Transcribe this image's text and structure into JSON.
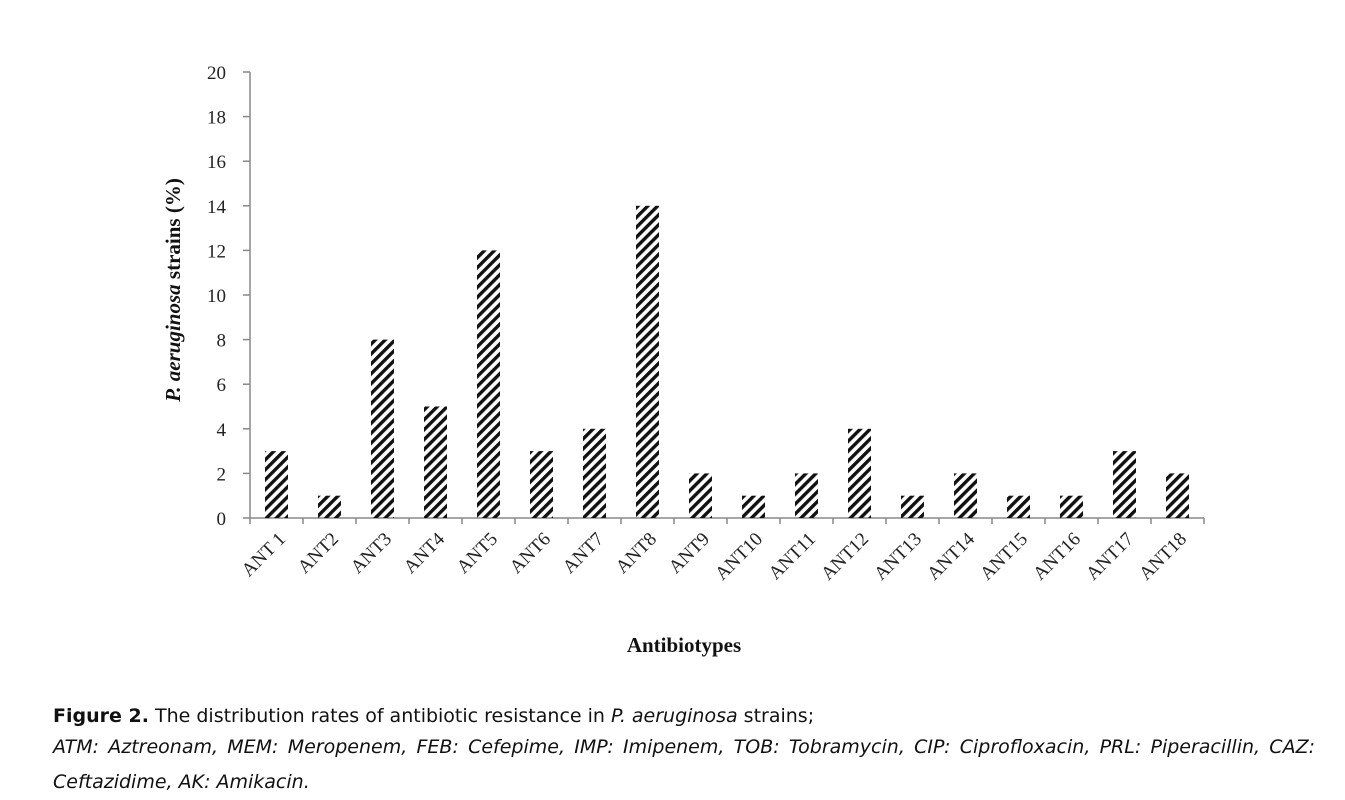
{
  "chart_data": {
    "type": "bar",
    "categories": [
      "ANT 1",
      "ANT2",
      "ANT3",
      "ANT4",
      "ANT5",
      "ANT6",
      "ANT7",
      "ANT8",
      "ANT9",
      "ANT10",
      "ANT11",
      "ANT12",
      "ANT13",
      "ANT14",
      "ANT15",
      "ANT16",
      "ANT17",
      "ANT18"
    ],
    "values": [
      3,
      1,
      8,
      5,
      12,
      3,
      4,
      14,
      2,
      1,
      2,
      4,
      1,
      2,
      1,
      1,
      3,
      2
    ],
    "xlabel": "Antibiotypes",
    "ylabel_italic": "P. aeruginosa",
    "ylabel_rest": " strains (%)",
    "ylim": [
      0,
      20
    ],
    "yticks": [
      0,
      2,
      4,
      6,
      8,
      10,
      12,
      14,
      16,
      18,
      20
    ],
    "bar_pattern": "diagonal-hatch",
    "bar_color": "#111111",
    "grid": false,
    "legend": "none"
  },
  "caption": {
    "label": "Figure 2.",
    "text_before": " The distribution rates of antibiotic resistance in ",
    "organism": "P. aeruginosa",
    "text_after": " strains;",
    "abbreviations": "ATM: Aztreonam, MEM: Meropenem, FEB: Cefepime, IMP: Imipenem, TOB: Tobramycin, CIP: Ciprofloxacin, PRL: Piperacillin, CAZ: Ceftazidime, AK: Amikacin."
  }
}
